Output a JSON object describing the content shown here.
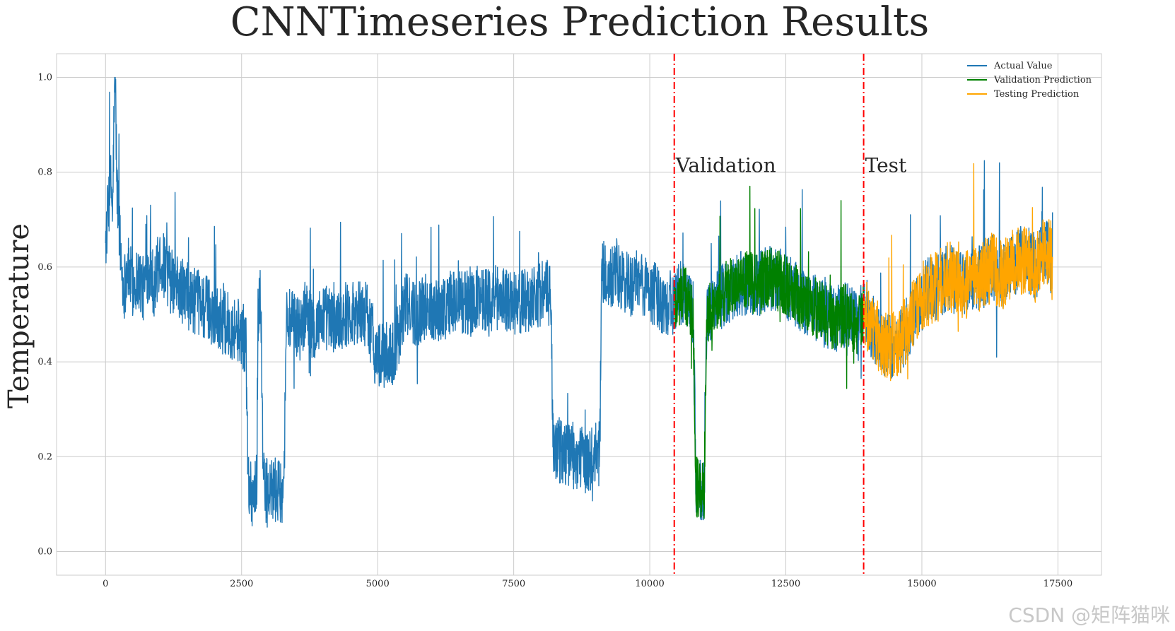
{
  "watermark": "CSDN @矩阵猫咪",
  "chart_data": {
    "type": "line",
    "title": "CNNTimeseries Prediction Results",
    "xlabel": "",
    "ylabel": "Temperature",
    "xlim": [
      -900,
      18300
    ],
    "ylim": [
      -0.05,
      1.05
    ],
    "x_ticks": [
      0,
      2500,
      5000,
      7500,
      10000,
      12500,
      15000,
      17500
    ],
    "y_ticks": [
      0.0,
      0.2,
      0.4,
      0.6,
      0.8,
      1.0
    ],
    "grid": true,
    "legend_position": "top-right",
    "split_lines": [
      {
        "x": 10450,
        "label": "Validation",
        "color": "#ff0000"
      },
      {
        "x": 13930,
        "label": "Test",
        "color": "#ff0000"
      }
    ],
    "annotation_y": 0.8,
    "series": [
      {
        "name": "Actual Value",
        "color": "#1f77b4",
        "x_range": [
          0,
          17400
        ],
        "points": [
          [
            0,
            0.65
          ],
          [
            60,
            0.74
          ],
          [
            100,
            0.78
          ],
          [
            130,
            0.7
          ],
          [
            150,
            0.88
          ],
          [
            180,
            1.0
          ],
          [
            210,
            0.76
          ],
          [
            240,
            0.72
          ],
          [
            280,
            0.62
          ],
          [
            330,
            0.55
          ],
          [
            400,
            0.6
          ],
          [
            500,
            0.56
          ],
          [
            600,
            0.58
          ],
          [
            700,
            0.55
          ],
          [
            800,
            0.6
          ],
          [
            900,
            0.56
          ],
          [
            1000,
            0.62
          ],
          [
            1200,
            0.57
          ],
          [
            1400,
            0.55
          ],
          [
            1600,
            0.53
          ],
          [
            1800,
            0.52
          ],
          [
            2000,
            0.5
          ],
          [
            2200,
            0.48
          ],
          [
            2400,
            0.47
          ],
          [
            2500,
            0.46
          ],
          [
            2580,
            0.44
          ],
          [
            2620,
            0.15
          ],
          [
            2700,
            0.12
          ],
          [
            2780,
            0.14
          ],
          [
            2800,
            0.5
          ],
          [
            2850,
            0.55
          ],
          [
            2900,
            0.14
          ],
          [
            3000,
            0.12
          ],
          [
            3100,
            0.13
          ],
          [
            3200,
            0.12
          ],
          [
            3280,
            0.14
          ],
          [
            3320,
            0.5
          ],
          [
            3400,
            0.48
          ],
          [
            3600,
            0.47
          ],
          [
            3700,
            0.52
          ],
          [
            3800,
            0.46
          ],
          [
            4000,
            0.5
          ],
          [
            4200,
            0.48
          ],
          [
            4400,
            0.5
          ],
          [
            4600,
            0.51
          ],
          [
            4800,
            0.5
          ],
          [
            4900,
            0.46
          ],
          [
            4950,
            0.42
          ],
          [
            5100,
            0.41
          ],
          [
            5300,
            0.42
          ],
          [
            5400,
            0.47
          ],
          [
            5500,
            0.52
          ],
          [
            5700,
            0.5
          ],
          [
            5900,
            0.52
          ],
          [
            6100,
            0.51
          ],
          [
            6300,
            0.52
          ],
          [
            6500,
            0.53
          ],
          [
            6700,
            0.52
          ],
          [
            6900,
            0.54
          ],
          [
            7100,
            0.53
          ],
          [
            7300,
            0.54
          ],
          [
            7500,
            0.52
          ],
          [
            7700,
            0.53
          ],
          [
            7900,
            0.54
          ],
          [
            8100,
            0.55
          ],
          [
            8180,
            0.53
          ],
          [
            8230,
            0.22
          ],
          [
            8400,
            0.21
          ],
          [
            8600,
            0.2
          ],
          [
            8800,
            0.19
          ],
          [
            9000,
            0.2
          ],
          [
            9080,
            0.21
          ],
          [
            9120,
            0.6
          ],
          [
            9200,
            0.57
          ],
          [
            9400,
            0.58
          ],
          [
            9600,
            0.56
          ],
          [
            9800,
            0.57
          ],
          [
            10000,
            0.55
          ],
          [
            10200,
            0.53
          ],
          [
            10450,
            0.52
          ],
          [
            10600,
            0.55
          ],
          [
            10800,
            0.5
          ],
          [
            10850,
            0.14
          ],
          [
            10950,
            0.12
          ],
          [
            11000,
            0.13
          ],
          [
            11050,
            0.5
          ],
          [
            11200,
            0.52
          ],
          [
            11400,
            0.55
          ],
          [
            11600,
            0.56
          ],
          [
            11800,
            0.57
          ],
          [
            12000,
            0.56
          ],
          [
            12200,
            0.58
          ],
          [
            12400,
            0.57
          ],
          [
            12600,
            0.55
          ],
          [
            12800,
            0.53
          ],
          [
            13000,
            0.52
          ],
          [
            13200,
            0.5
          ],
          [
            13400,
            0.49
          ],
          [
            13600,
            0.5
          ],
          [
            13800,
            0.48
          ],
          [
            13930,
            0.5
          ],
          [
            14100,
            0.47
          ],
          [
            14300,
            0.44
          ],
          [
            14500,
            0.43
          ],
          [
            14700,
            0.46
          ],
          [
            14900,
            0.52
          ],
          [
            15100,
            0.55
          ],
          [
            15300,
            0.56
          ],
          [
            15500,
            0.58
          ],
          [
            15700,
            0.56
          ],
          [
            15900,
            0.57
          ],
          [
            16100,
            0.58
          ],
          [
            16300,
            0.6
          ],
          [
            16500,
            0.58
          ],
          [
            16700,
            0.61
          ],
          [
            16900,
            0.62
          ],
          [
            17100,
            0.6
          ],
          [
            17300,
            0.64
          ],
          [
            17400,
            0.6
          ]
        ]
      },
      {
        "name": "Validation Prediction",
        "color": "#008000",
        "x_range": [
          10450,
          13930
        ],
        "points": [
          [
            10450,
            0.52
          ],
          [
            10600,
            0.55
          ],
          [
            10800,
            0.5
          ],
          [
            10850,
            0.14
          ],
          [
            10950,
            0.12
          ],
          [
            11000,
            0.13
          ],
          [
            11050,
            0.5
          ],
          [
            11200,
            0.52
          ],
          [
            11400,
            0.55
          ],
          [
            11600,
            0.56
          ],
          [
            11800,
            0.57
          ],
          [
            12000,
            0.56
          ],
          [
            12200,
            0.58
          ],
          [
            12400,
            0.57
          ],
          [
            12600,
            0.55
          ],
          [
            12800,
            0.53
          ],
          [
            13000,
            0.52
          ],
          [
            13200,
            0.5
          ],
          [
            13400,
            0.49
          ],
          [
            13600,
            0.5
          ],
          [
            13800,
            0.48
          ],
          [
            13930,
            0.5
          ]
        ]
      },
      {
        "name": "Testing Prediction",
        "color": "#ffa500",
        "x_range": [
          13930,
          17400
        ],
        "points": [
          [
            13930,
            0.5
          ],
          [
            14100,
            0.47
          ],
          [
            14300,
            0.44
          ],
          [
            14500,
            0.43
          ],
          [
            14700,
            0.46
          ],
          [
            14900,
            0.52
          ],
          [
            15100,
            0.55
          ],
          [
            15300,
            0.56
          ],
          [
            15500,
            0.58
          ],
          [
            15700,
            0.56
          ],
          [
            15900,
            0.57
          ],
          [
            16100,
            0.58
          ],
          [
            16300,
            0.6
          ],
          [
            16500,
            0.58
          ],
          [
            16700,
            0.61
          ],
          [
            16900,
            0.62
          ],
          [
            17100,
            0.6
          ],
          [
            17300,
            0.64
          ],
          [
            17400,
            0.6
          ]
        ]
      }
    ]
  }
}
